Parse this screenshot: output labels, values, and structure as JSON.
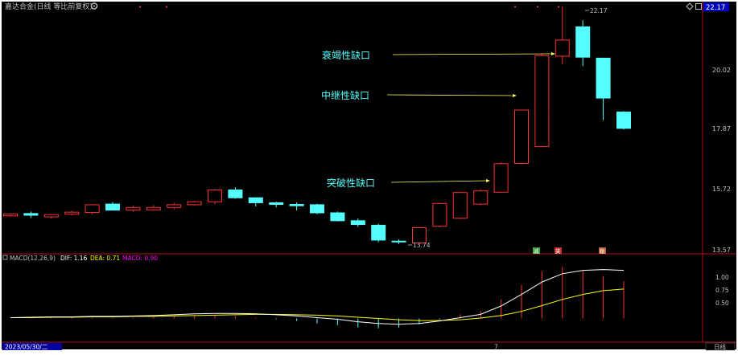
{
  "header": {
    "title": "嘉达合金(日线 等比前复权)",
    "icon": "gear-icon"
  },
  "price_axis": {
    "ticks": [
      "22.17",
      "20.02",
      "17.87",
      "15.72",
      "13.57"
    ],
    "current_price": "22.17"
  },
  "price_chart": {
    "type": "candlestick",
    "ylim": [
      13.57,
      22.17
    ],
    "annotations": {
      "high_label": "22.17",
      "low_label": "13.74",
      "gap1": "衰竭性缺口",
      "gap2": "中继性缺口",
      "gap3": "突破性缺口"
    },
    "markers": [
      "减",
      "夹",
      "稳"
    ]
  },
  "macd_panel": {
    "title": "MACD(12,26,9)",
    "dif_label": "DIF: 1.16",
    "dea_label": "DEA: 0.71",
    "macd_label": "MACD: 0.90",
    "ticks": [
      "1.00",
      "0.75",
      "0.50"
    ]
  },
  "footer": {
    "date": "2023/05/30/二",
    "period_button": "日线",
    "month_mark": "7"
  },
  "colors": {
    "up": "#ff3030",
    "down": "#54ffff",
    "dif": "#ffffff",
    "dea": "#ffff00",
    "macd": "#ff00ff",
    "text": "#c0c0c0",
    "annotation": "#54ffff"
  },
  "chart_data": {
    "type": "candlestick",
    "open": [
      14.55,
      14.62,
      14.52,
      14.6,
      14.65,
      14.9,
      14.72,
      14.73,
      14.8,
      14.88,
      14.97,
      15.33,
      15.09,
      14.94,
      14.89,
      14.88,
      14.64,
      14.41,
      14.28,
      13.83,
      13.78,
      14.25,
      14.48,
      14.9,
      15.26,
      16.17,
      16.73,
      20.06,
      21.28,
      19.98,
      17.93
    ],
    "high": [
      14.63,
      14.68,
      14.6,
      14.7,
      14.9,
      14.96,
      14.85,
      14.87,
      14.94,
      15.0,
      15.36,
      15.41,
      15.1,
      14.97,
      14.95,
      14.91,
      14.68,
      14.48,
      14.32,
      13.88,
      14.2,
      14.94,
      15.27,
      15.35,
      16.21,
      18.02,
      20.13,
      22.17,
      21.56,
      19.99,
      17.96
    ],
    "low": [
      14.52,
      14.49,
      14.47,
      14.57,
      14.6,
      14.73,
      14.68,
      14.71,
      14.74,
      14.85,
      14.9,
      15.06,
      14.83,
      14.8,
      14.71,
      14.6,
      14.39,
      14.23,
      13.8,
      13.75,
      13.74,
      14.22,
      14.46,
      14.87,
      15.24,
      16.13,
      16.71,
      19.74,
      19.66,
      17.64,
      17.31
    ],
    "close": [
      14.61,
      14.57,
      14.59,
      14.66,
      14.88,
      14.72,
      14.8,
      14.8,
      14.88,
      14.97,
      15.33,
      15.09,
      14.94,
      14.89,
      14.85,
      14.64,
      14.41,
      14.3,
      13.86,
      13.81,
      14.21,
      14.92,
      15.25,
      15.3,
      16.16,
      18.0,
      20.08,
      20.72,
      20.02,
      18.44,
      17.35
    ],
    "ylim": [
      13.57,
      22.17
    ],
    "macd": {
      "dif": [
        0.02,
        0.03,
        0.04,
        0.04,
        0.05,
        0.05,
        0.06,
        0.07,
        0.09,
        0.11,
        0.12,
        0.12,
        0.11,
        0.09,
        0.06,
        0.02,
        -0.02,
        -0.08,
        -0.12,
        -0.14,
        -0.12,
        -0.06,
        0.02,
        0.1,
        0.3,
        0.58,
        0.88,
        1.08,
        1.16,
        1.18,
        1.16
      ],
      "dea": [
        0.02,
        0.02,
        0.03,
        0.03,
        0.04,
        0.04,
        0.05,
        0.05,
        0.06,
        0.07,
        0.08,
        0.09,
        0.1,
        0.1,
        0.09,
        0.08,
        0.06,
        0.03,
        0.0,
        -0.03,
        -0.05,
        -0.05,
        -0.03,
        0.01,
        0.07,
        0.17,
        0.31,
        0.46,
        0.58,
        0.67,
        0.71
      ],
      "hist": [
        0.0,
        0.02,
        0.02,
        0.02,
        0.02,
        0.02,
        0.02,
        0.04,
        0.06,
        0.08,
        0.08,
        0.06,
        0.02,
        -0.02,
        -0.06,
        -0.12,
        -0.16,
        -0.22,
        -0.24,
        -0.22,
        -0.14,
        -0.02,
        0.1,
        0.18,
        0.46,
        0.82,
        1.14,
        1.24,
        1.16,
        1.02,
        0.9
      ],
      "ylim": [
        -0.3,
        1.25
      ]
    }
  }
}
